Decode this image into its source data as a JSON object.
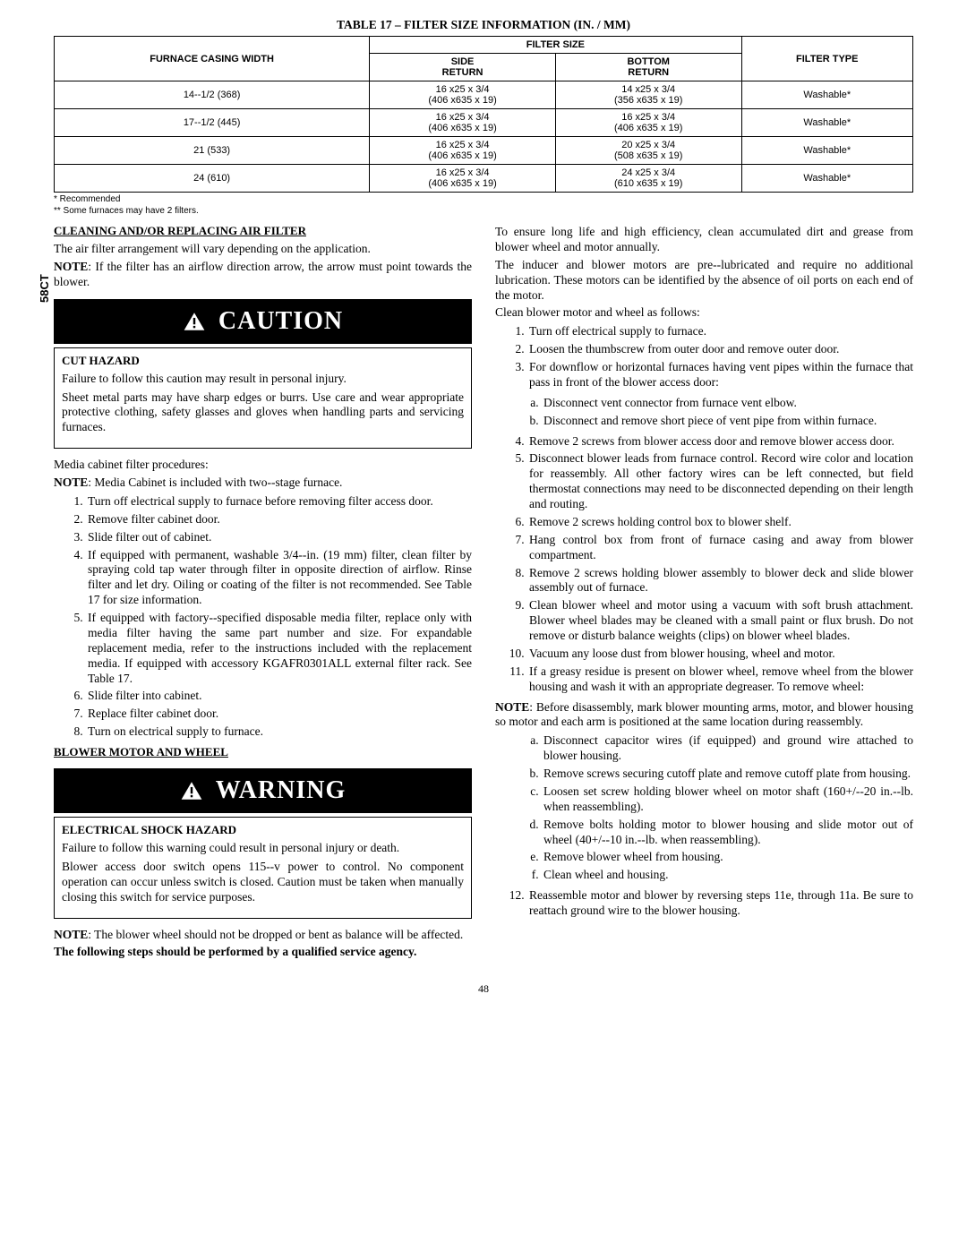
{
  "side_label": "58CT",
  "page_number": "48",
  "table": {
    "title": "TABLE 17 – FILTER SIZE INFORMATION (IN. / MM)",
    "col_group_header": "FILTER SIZE",
    "headers": {
      "casing": "FURNACE CASING WIDTH",
      "side": "SIDE\nRETURN",
      "bottom": "BOTTOM\nRETURN",
      "type": "FILTER TYPE"
    },
    "rows": [
      {
        "casing": "14--1/2 (368)",
        "side": "16 x25 x 3/4\n(406 x635 x 19)",
        "bottom": "14 x25 x 3/4\n(356 x635 x 19)",
        "type": "Washable*"
      },
      {
        "casing": "17--1/2 (445)",
        "side": "16 x25 x 3/4\n(406 x635 x 19)",
        "bottom": "16 x25 x 3/4\n(406 x635 x 19)",
        "type": "Washable*"
      },
      {
        "casing": "21 (533)",
        "side": "16 x25 x 3/4\n(406 x635 x 19)",
        "bottom": "20 x25 x 3/4\n(508 x635 x 19)",
        "type": "Washable*"
      },
      {
        "casing": "24 (610)",
        "side": "16 x25 x 3/4\n(406 x635 x 19)",
        "bottom": "24 x25 x 3/4\n(610 x635 x 19)",
        "type": "Washable*"
      }
    ],
    "notes": [
      "* Recommended",
      "** Some furnaces may have 2 filters."
    ]
  },
  "left": {
    "head1": "CLEANING AND/OR REPLACING AIR FILTER",
    "p1": "The air filter arrangement will vary depending on the application.",
    "p2_pre": "NOTE",
    "p2": ":  If the filter has an airflow direction arrow, the arrow must point towards the blower.",
    "caution_banner": "CAUTION",
    "caution_title": "CUT HAZARD",
    "caution_p1": "Failure to follow this caution may result in personal injury.",
    "caution_p2": "Sheet metal parts may have sharp edges or burrs. Use care and wear appropriate protective clothing, safety glasses and gloves when handling parts and servicing furnaces.",
    "p3": "Media cabinet filter procedures:",
    "p4_pre": "NOTE",
    "p4": ":  Media Cabinet is included with two--stage furnace.",
    "ol1": [
      "Turn off electrical supply to furnace before removing filter access door.",
      "Remove filter cabinet door.",
      "Slide filter out of cabinet.",
      "If equipped with permanent, washable 3/4--in. (19 mm) filter, clean filter by spraying cold tap water through filter in opposite direction of airflow. Rinse filter and let dry. Oiling or coating of the filter is not recommended. See Table 17 for size information.",
      "If equipped with factory--specified disposable media filter, replace only with media filter having the same part number and size. For expandable replacement media, refer to the instructions included with the replacement media. If equipped with accessory KGAFR0301ALL external filter rack.  See Table 17.",
      "Slide filter into cabinet.",
      "Replace filter cabinet door.",
      "Turn on electrical supply to furnace."
    ],
    "head2": "BLOWER MOTOR AND WHEEL",
    "warn_banner": "WARNING",
    "warn_title": "ELECTRICAL SHOCK HAZARD",
    "warn_p1": "Failure to follow this warning could result in personal injury or death.",
    "warn_p2": "Blower access door switch opens 115--v power to control. No component operation can occur unless switch is closed. Caution must be taken when manually closing this switch for service  purposes.",
    "p5_pre": "NOTE",
    "p5": ":  The blower wheel should not be dropped or bent as balance will be affected.",
    "p6": "The following steps should be performed by a qualified service agency."
  },
  "right": {
    "p1": "To ensure long life and high efficiency, clean accumulated dirt and grease from blower wheel and motor annually.",
    "p2": "The inducer and blower motors are pre--lubricated and require no additional lubrication. These motors can be identified by the absence of oil ports on each end of the motor.",
    "p3": "Clean blower motor and wheel as follows:",
    "ol1": [
      "Turn off electrical supply to furnace.",
      "Loosen the thumbscrew from outer door and remove outer door.",
      "For downflow or horizontal furnaces having vent pipes within the furnace that pass in front of the blower access door:"
    ],
    "ol1_sub3": [
      "Disconnect vent connector from furnace vent elbow.",
      "Disconnect and remove short piece of vent pipe from within furnace."
    ],
    "ol2": [
      "Remove 2 screws from blower access door and remove blower access door.",
      "Disconnect blower leads from furnace control. Record wire color and location for reassembly. All other factory wires can be left connected, but field thermostat connections may need to be disconnected depending on their length and routing.",
      "Remove 2 screws holding control box to blower shelf.",
      "Hang control box from front of furnace casing and away from blower compartment.",
      "Remove 2 screws holding blower assembly to blower deck and slide blower assembly out of furnace.",
      "Clean blower wheel and motor using a vacuum with soft brush attachment. Blower wheel blades may be cleaned with a small paint or flux brush. Do not remove or disturb balance weights (clips) on blower wheel blades.",
      "Vacuum any loose dust from blower housing, wheel and motor.",
      "If a greasy residue is present on blower wheel, remove wheel from the blower housing and wash it with an appropriate degreaser. To remove wheel:"
    ],
    "p4_pre": "NOTE",
    "p4": ":  Before disassembly, mark blower mounting arms, motor, and blower housing so motor and each arm is positioned at the same location during reassembly.",
    "ol3_sub": [
      "Disconnect capacitor wires (if equipped) and ground wire attached to blower housing.",
      "Remove screws securing cutoff plate and remove cutoff plate from housing.",
      "Loosen set screw holding blower wheel on motor shaft (160+/--20 in.--lb. when reassembling).",
      "Remove bolts holding motor to blower housing and slide motor out of wheel (40+/--10 in.--lb. when reassembling).",
      "Remove blower wheel from housing.",
      "Clean wheel and housing."
    ],
    "ol4": [
      "Reassemble motor and blower by reversing steps 11e, through 11a. Be sure to reattach ground wire to the blower housing."
    ]
  }
}
